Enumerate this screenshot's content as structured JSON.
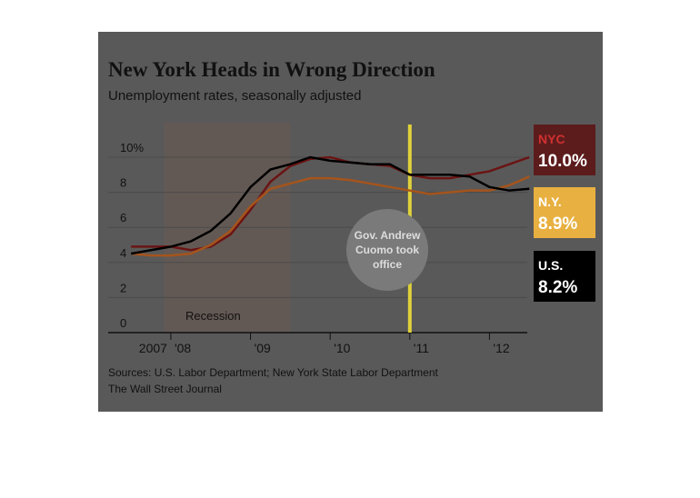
{
  "chart_data": {
    "type": "line",
    "title": "New York Heads in Wrong Direction",
    "subtitle": "Unemployment rates, seasonally adjusted",
    "x": [
      2007.5,
      2007.75,
      2008,
      2008.25,
      2008.5,
      2008.75,
      2009,
      2009.25,
      2009.5,
      2009.75,
      2010,
      2010.25,
      2010.5,
      2010.75,
      2011,
      2011.25,
      2011.5,
      2011.75,
      2012,
      2012.25,
      2012.5
    ],
    "series": [
      {
        "name": "NYC",
        "color": "#6b1414",
        "box_color": "#5c1c1c",
        "values": [
          4.9,
          4.9,
          4.9,
          4.7,
          4.9,
          5.6,
          7.0,
          8.6,
          9.5,
          9.9,
          10.0,
          9.7,
          9.6,
          9.5,
          9.0,
          8.8,
          8.8,
          9.0,
          9.2,
          9.6,
          10.0
        ],
        "value_labels": [
          null,
          null,
          null,
          null,
          null,
          null,
          null,
          null,
          null,
          null,
          null,
          null,
          null,
          null,
          null,
          null,
          null,
          null,
          null,
          null,
          "10.0%"
        ]
      },
      {
        "name": "N.Y.",
        "color": "#a5541c",
        "box_color": "#e8b040",
        "values": [
          4.5,
          4.4,
          4.4,
          4.5,
          5.0,
          5.8,
          7.2,
          8.2,
          8.5,
          8.8,
          8.8,
          8.7,
          8.5,
          8.3,
          8.1,
          7.9,
          8.0,
          8.1,
          8.1,
          8.4,
          8.9
        ],
        "value_labels": [
          null,
          null,
          null,
          null,
          null,
          null,
          null,
          null,
          null,
          null,
          null,
          null,
          null,
          null,
          null,
          null,
          null,
          null,
          null,
          null,
          "8.9%"
        ]
      },
      {
        "name": "U.S.",
        "color": "#000000",
        "box_color": "#000000",
        "values": [
          4.5,
          4.7,
          4.9,
          5.2,
          5.8,
          6.8,
          8.3,
          9.3,
          9.6,
          10.0,
          9.8,
          9.7,
          9.6,
          9.6,
          9.0,
          9.0,
          9.0,
          8.9,
          8.3,
          8.1,
          8.2
        ],
        "value_labels": [
          null,
          null,
          null,
          null,
          null,
          null,
          null,
          null,
          null,
          null,
          null,
          null,
          null,
          null,
          null,
          null,
          null,
          null,
          null,
          null,
          "8.2%"
        ]
      }
    ],
    "xlim": [
      2007.35,
      2012.6
    ],
    "xticks": [
      {
        "value": 2008,
        "label": "'08"
      },
      {
        "value": 2009,
        "label": "'09"
      },
      {
        "value": 2010,
        "label": "'10"
      },
      {
        "value": 2011,
        "label": "'11"
      },
      {
        "value": 2012,
        "label": "'12"
      }
    ],
    "first_year_label": "2007",
    "ylim": [
      0,
      10.5
    ],
    "yticks": [
      0,
      2,
      4,
      6,
      8,
      {
        "value": 10,
        "label": "10%"
      }
    ],
    "grid": true,
    "recession": {
      "label": "Recession",
      "start": 2007.92,
      "end": 2009.5
    },
    "annotation": {
      "lines": [
        "Gov. Andrew",
        "Cuomo took",
        "office"
      ],
      "x": 2011
    },
    "sources": "Sources: U.S. Labor Department; New York State Labor Department",
    "credit": "The Wall Street Journal"
  }
}
